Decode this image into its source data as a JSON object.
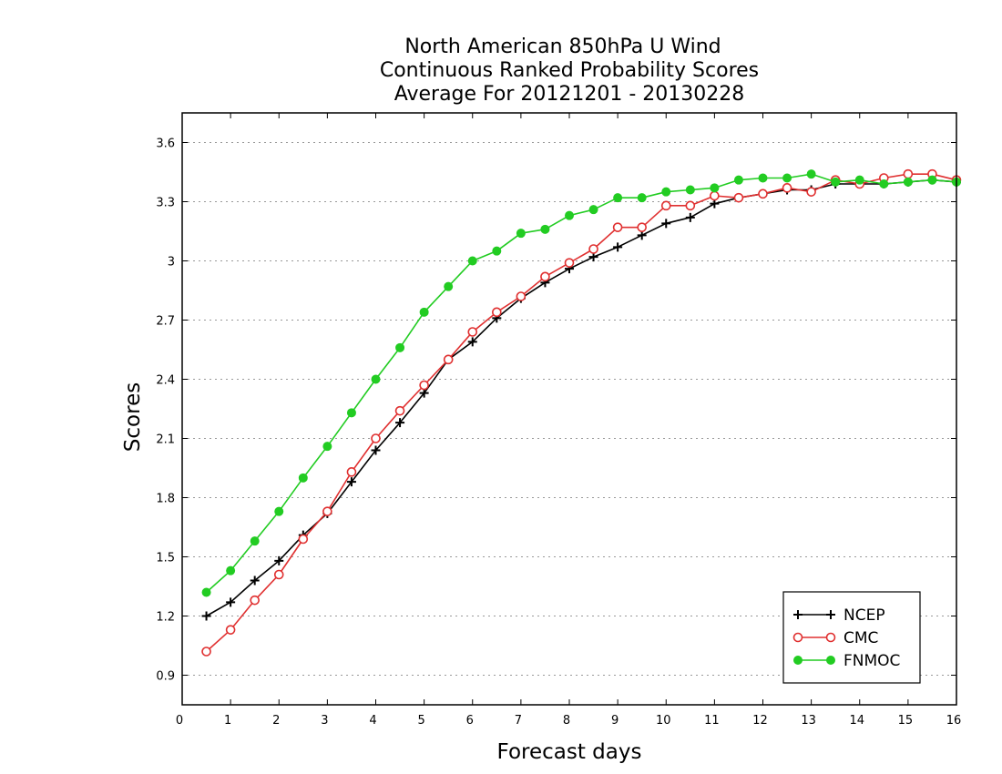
{
  "chart_data": {
    "type": "line",
    "title": [
      "North American 850hPa U Wind",
      "Continuous Ranked Probability Scores",
      "Average For 20121201 - 20130228"
    ],
    "xlabel": "Forecast days",
    "ylabel": "Scores",
    "xlim": [
      0,
      16
    ],
    "ylim": [
      0.75,
      3.75
    ],
    "xticks": [
      0,
      1,
      2,
      3,
      4,
      5,
      6,
      7,
      8,
      9,
      10,
      11,
      12,
      13,
      14,
      15,
      16
    ],
    "xtick_labels": [
      "0",
      "1",
      "2",
      "3",
      "4",
      "5",
      "6",
      "7",
      "8",
      "9",
      "10",
      "11",
      "12",
      "13",
      "14",
      "15",
      "16"
    ],
    "yticks": [
      0.9,
      1.2,
      1.5,
      1.8,
      2.1,
      2.4,
      2.7,
      3.0,
      3.3,
      3.6
    ],
    "ytick_labels": [
      "0.9",
      "1.2",
      "1.5",
      "1.8",
      "2.1",
      "2.4",
      "2.7",
      "3",
      "3.3",
      "3.6"
    ],
    "grid": "horizontal dotted",
    "legend_position": "bottom-right",
    "x": [
      0.5,
      1,
      1.5,
      2,
      2.5,
      3,
      3.5,
      4,
      4.5,
      5,
      5.5,
      6,
      6.5,
      7,
      7.5,
      8,
      8.5,
      9,
      9.5,
      10,
      10.5,
      11,
      11.5,
      12,
      12.5,
      13,
      13.5,
      14,
      14.5,
      15,
      15.5,
      16
    ],
    "series": [
      {
        "name": "NCEP",
        "color": "#000000",
        "marker": "plus",
        "values": [
          1.2,
          1.27,
          1.38,
          1.48,
          1.61,
          1.72,
          1.88,
          2.04,
          2.18,
          2.33,
          2.5,
          2.59,
          2.71,
          2.81,
          2.89,
          2.96,
          3.02,
          3.07,
          3.13,
          3.19,
          3.22,
          3.29,
          3.32,
          3.34,
          3.36,
          3.36,
          3.39,
          3.39,
          3.39,
          3.4,
          3.41,
          3.4
        ]
      },
      {
        "name": "CMC",
        "color": "#e03030",
        "marker": "open-circle",
        "values": [
          1.02,
          1.13,
          1.28,
          1.41,
          1.59,
          1.73,
          1.93,
          2.1,
          2.24,
          2.37,
          2.5,
          2.64,
          2.74,
          2.82,
          2.92,
          2.99,
          3.06,
          3.17,
          3.17,
          3.28,
          3.28,
          3.33,
          3.32,
          3.34,
          3.37,
          3.35,
          3.41,
          3.39,
          3.42,
          3.44,
          3.44,
          3.41
        ]
      },
      {
        "name": "FNMOC",
        "color": "#22cc22",
        "marker": "filled-circle",
        "values": [
          1.32,
          1.43,
          1.58,
          1.73,
          1.9,
          2.06,
          2.23,
          2.4,
          2.56,
          2.74,
          2.87,
          3.0,
          3.05,
          3.14,
          3.16,
          3.23,
          3.26,
          3.32,
          3.32,
          3.35,
          3.36,
          3.37,
          3.41,
          3.42,
          3.42,
          3.44,
          3.4,
          3.41,
          3.39,
          3.4,
          3.41,
          3.4
        ]
      }
    ]
  }
}
